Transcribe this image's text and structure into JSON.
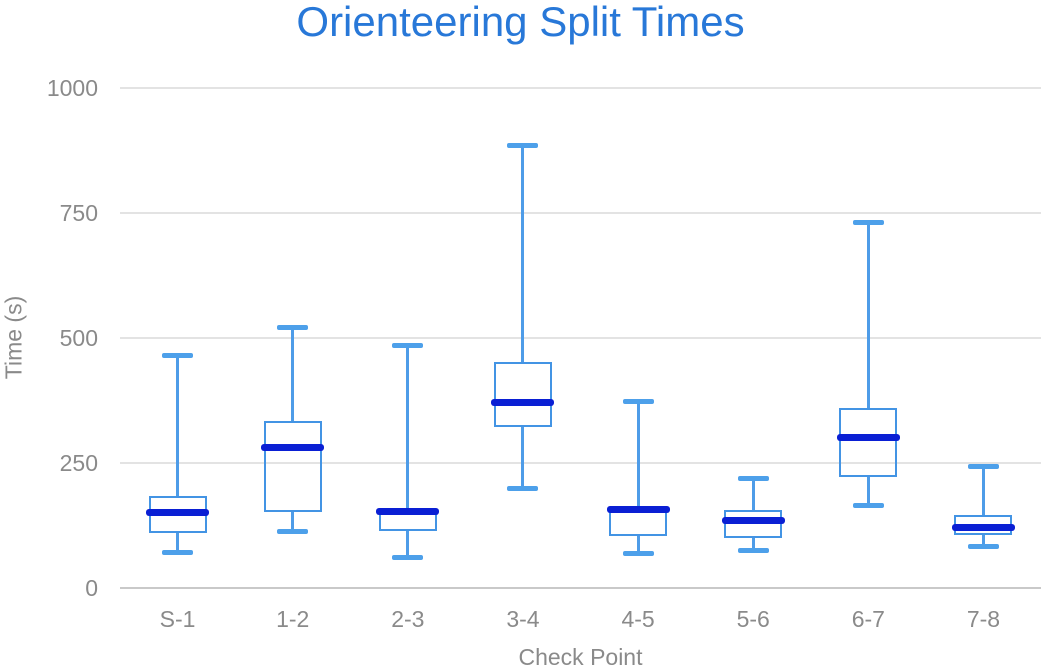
{
  "title": "Orienteering Split Times",
  "colors": {
    "title": "#2878d8",
    "box_stroke": "#4394e4",
    "whisker_line": "#4e9ce8",
    "whisker_cap": "#4da0ea",
    "median": "#0a1fd4",
    "gridline": "#e3e3e3",
    "zero_axis_line": "#c9c9c9",
    "tick_text": "#8a8a8a",
    "background": "#ffffff"
  },
  "chart_data": {
    "type": "boxplot",
    "title": "Orienteering Split Times",
    "xlabel": "Check Point",
    "ylabel": "Time (s)",
    "ylim": [
      0,
      1000
    ],
    "yticks": [
      0,
      250,
      500,
      750,
      1000
    ],
    "grid": true,
    "legend": false,
    "categories": [
      "S-1",
      "1-2",
      "2-3",
      "3-4",
      "4-5",
      "5-6",
      "6-7",
      "7-8"
    ],
    "boxes": [
      {
        "category": "S-1",
        "min": 70,
        "q1": 110,
        "median": 151,
        "q3": 183,
        "max": 465
      },
      {
        "category": "1-2",
        "min": 113,
        "q1": 151,
        "median": 281,
        "q3": 333,
        "max": 521
      },
      {
        "category": "2-3",
        "min": 60,
        "q1": 113,
        "median": 153,
        "q3": 158,
        "max": 485
      },
      {
        "category": "3-4",
        "min": 199,
        "q1": 321,
        "median": 370,
        "q3": 451,
        "max": 885
      },
      {
        "category": "4-5",
        "min": 68,
        "q1": 104,
        "median": 157,
        "q3": 162,
        "max": 372
      },
      {
        "category": "5-6",
        "min": 75,
        "q1": 100,
        "median": 134,
        "q3": 155,
        "max": 219
      },
      {
        "category": "6-7",
        "min": 165,
        "q1": 222,
        "median": 300,
        "q3": 360,
        "max": 731
      },
      {
        "category": "7-8",
        "min": 82,
        "q1": 105,
        "median": 120,
        "q3": 145,
        "max": 243
      }
    ]
  }
}
